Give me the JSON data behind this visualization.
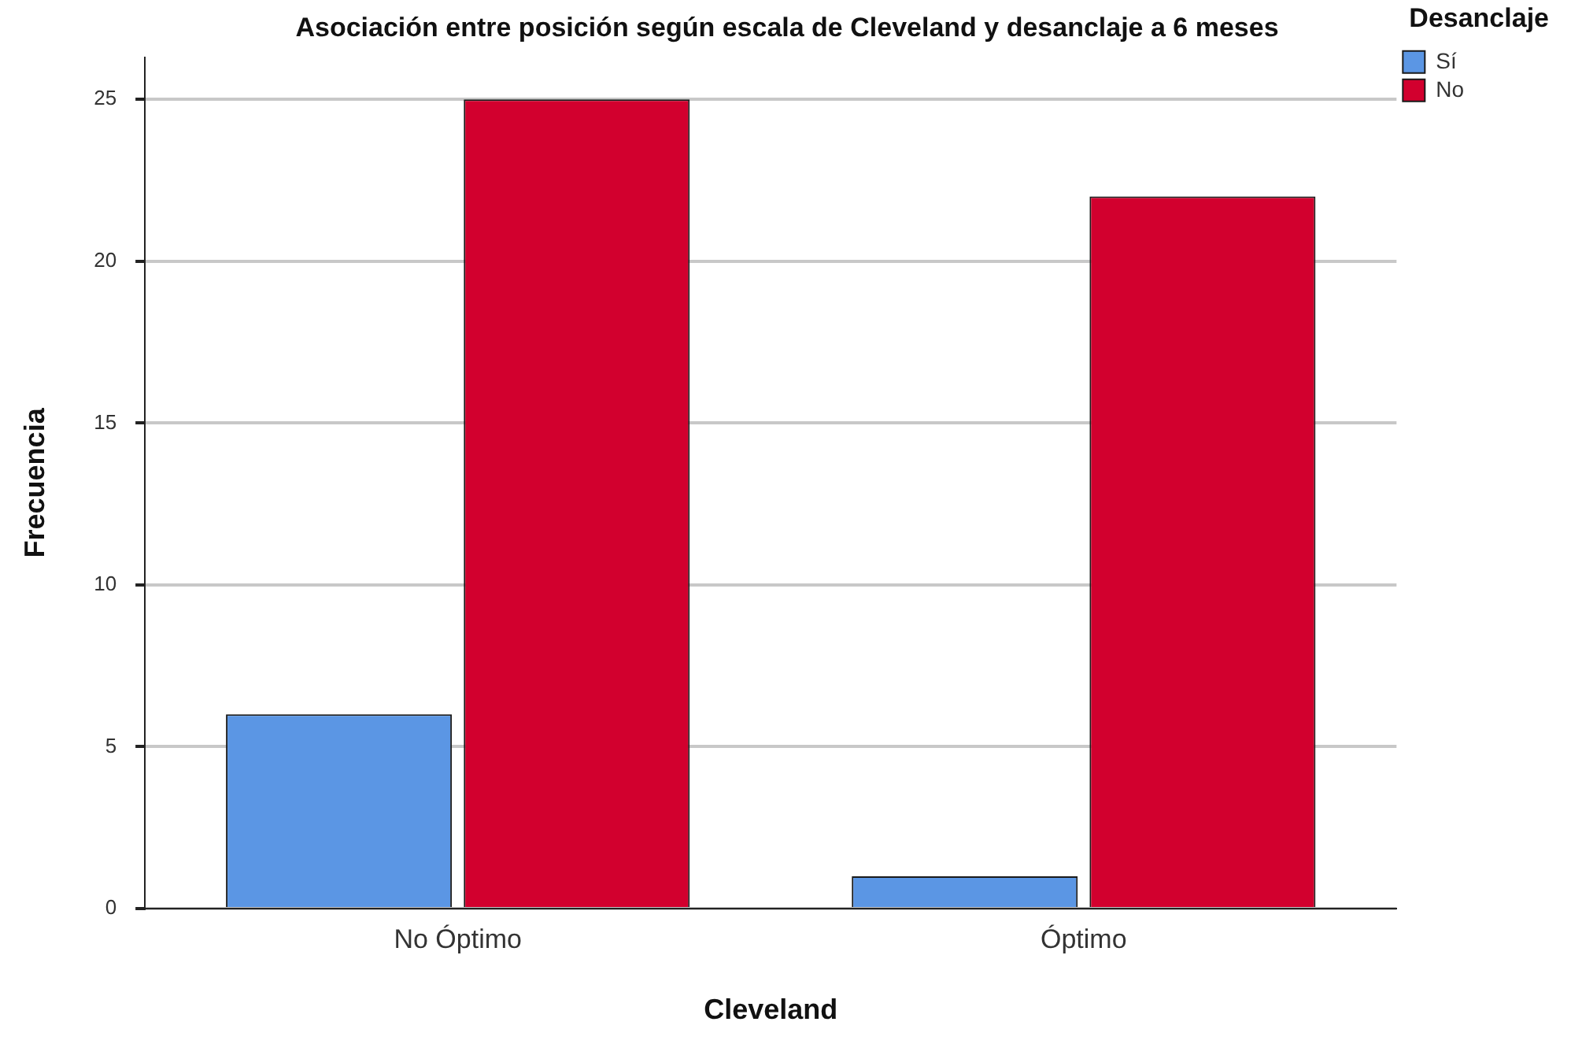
{
  "chart_data": {
    "type": "bar",
    "title": "Asociación entre posición según escala de Cleveland y desanclaje a 6 meses",
    "xlabel": "Cleveland",
    "ylabel": "Frecuencia",
    "legend_title": "Desanclaje",
    "categories": [
      "No Óptimo",
      "Óptimo"
    ],
    "series": [
      {
        "name": "Sí",
        "color": "#5b96e4",
        "values": [
          6,
          1
        ]
      },
      {
        "name": "No",
        "color": "#d2002e",
        "values": [
          25,
          22
        ]
      }
    ],
    "ylim": [
      0,
      26.3
    ],
    "yticks": [
      0,
      5,
      10,
      15,
      20,
      25
    ],
    "grid": "y",
    "legend": "top right"
  }
}
